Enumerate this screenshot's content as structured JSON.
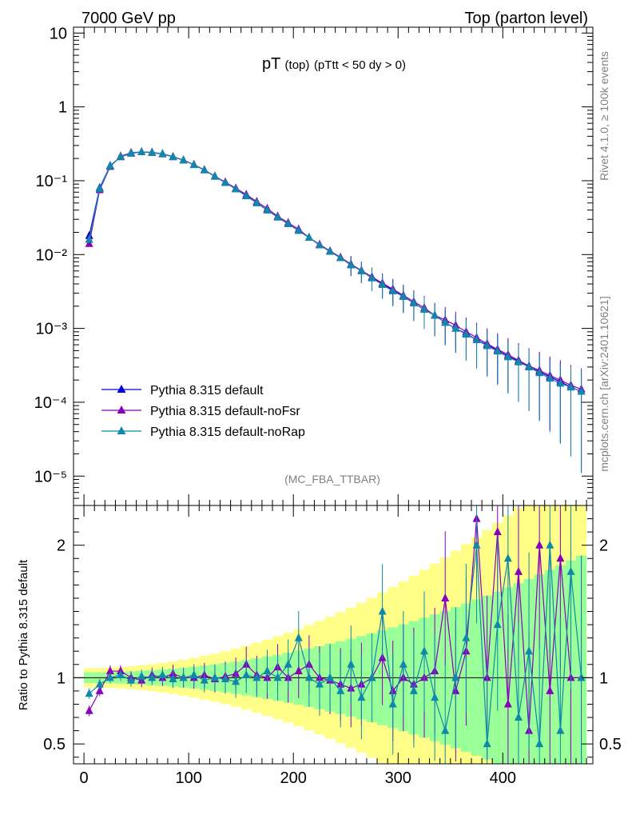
{
  "header": {
    "left": "7000 GeV pp",
    "right": "Top (parton level)"
  },
  "side_labels": {
    "rivet": "Rivet 4.1.0, ≥ 100k events",
    "mcplots": "mcplots.cern.ch [arXiv:2401.10621]"
  },
  "chart_data": [
    {
      "type": "line",
      "panel": "main",
      "title": "pT",
      "title_sub": "(top)",
      "title_cut": "(pTtt < 50 dy > 0)",
      "watermark": "(MC_FBA_TTBAR)",
      "xlim": [
        -10,
        486
      ],
      "ylim": [
        4e-06,
        12
      ],
      "yscale": "log",
      "yticks": [
        {
          "value": 10,
          "label": "10"
        },
        {
          "value": 1,
          "label": "1"
        },
        {
          "value": 0.1,
          "label": "10⁻¹"
        },
        {
          "value": 0.01,
          "label": "10⁻²"
        },
        {
          "value": 0.001,
          "label": "10⁻³"
        },
        {
          "value": 0.0001,
          "label": "10⁻⁴"
        },
        {
          "value": 1e-05,
          "label": "10⁻⁵"
        }
      ],
      "legend_position": "lower-left",
      "series": [
        {
          "name": "Pythia 8.315 default",
          "color": "#0000dd",
          "x": [
            5,
            15,
            25,
            35,
            45,
            55,
            65,
            75,
            85,
            95,
            105,
            115,
            125,
            135,
            145,
            155,
            165,
            175,
            185,
            195,
            205,
            215,
            225,
            235,
            245,
            255,
            265,
            275,
            285,
            295,
            305,
            315,
            325,
            335,
            345,
            355,
            365,
            375,
            385,
            395,
            405,
            415,
            425,
            435,
            445,
            455,
            465,
            475
          ],
          "values": [
            0.018,
            0.08,
            0.16,
            0.21,
            0.235,
            0.245,
            0.24,
            0.23,
            0.21,
            0.19,
            0.165,
            0.14,
            0.115,
            0.095,
            0.078,
            0.063,
            0.05,
            0.04,
            0.032,
            0.026,
            0.021,
            0.017,
            0.0135,
            0.011,
            0.009,
            0.0073,
            0.006,
            0.0049,
            0.004,
            0.0033,
            0.0027,
            0.0022,
            0.0018,
            0.0015,
            0.0012,
            0.001,
            0.00085,
            0.0007,
            0.0006,
            0.0005,
            0.00042,
            0.00036,
            0.0003,
            0.00026,
            0.00022,
            0.00019,
            0.00016,
            0.00014
          ]
        },
        {
          "name": "Pythia 8.315 default-noFsr",
          "color": "#8800bb",
          "x": [
            5,
            15,
            25,
            35,
            45,
            55,
            65,
            75,
            85,
            95,
            105,
            115,
            125,
            135,
            145,
            155,
            165,
            175,
            185,
            195,
            205,
            215,
            225,
            235,
            245,
            255,
            265,
            275,
            285,
            295,
            305,
            315,
            325,
            335,
            345,
            355,
            365,
            375,
            385,
            395,
            405,
            415,
            425,
            435,
            445,
            455,
            465,
            475
          ],
          "values": [
            0.014,
            0.075,
            0.155,
            0.215,
            0.24,
            0.245,
            0.242,
            0.232,
            0.212,
            0.19,
            0.165,
            0.14,
            0.115,
            0.096,
            0.079,
            0.065,
            0.052,
            0.042,
            0.033,
            0.027,
            0.022,
            0.017,
            0.0137,
            0.0112,
            0.0092,
            0.0074,
            0.0061,
            0.005,
            0.0041,
            0.0034,
            0.0028,
            0.0023,
            0.0019,
            0.0015,
            0.0013,
            0.0011,
            0.0009,
            0.00075,
            0.00062,
            0.00052,
            0.00044,
            0.00037,
            0.00031,
            0.00027,
            0.00023,
            0.0002,
            0.00017,
            0.00015
          ]
        },
        {
          "name": "Pythia 8.315 default-noRap",
          "color": "#1188aa",
          "x": [
            5,
            15,
            25,
            35,
            45,
            55,
            65,
            75,
            85,
            95,
            105,
            115,
            125,
            135,
            145,
            155,
            165,
            175,
            185,
            195,
            205,
            215,
            225,
            235,
            245,
            255,
            265,
            275,
            285,
            295,
            305,
            315,
            325,
            335,
            345,
            355,
            365,
            375,
            385,
            395,
            405,
            415,
            425,
            435,
            445,
            455,
            465,
            475
          ],
          "values": [
            0.016,
            0.078,
            0.158,
            0.212,
            0.237,
            0.246,
            0.241,
            0.231,
            0.211,
            0.189,
            0.164,
            0.139,
            0.114,
            0.094,
            0.077,
            0.062,
            0.05,
            0.04,
            0.032,
            0.026,
            0.021,
            0.017,
            0.0134,
            0.011,
            0.009,
            0.0072,
            0.006,
            0.0048,
            0.0039,
            0.0032,
            0.0027,
            0.0022,
            0.0018,
            0.0015,
            0.0012,
            0.001,
            0.00083,
            0.0007,
            0.00058,
            0.00049,
            0.00041,
            0.00035,
            0.0003,
            0.00025,
            0.00021,
            0.00018,
            0.00016,
            0.00014
          ]
        }
      ]
    },
    {
      "type": "line",
      "panel": "ratio",
      "ylabel": "Ratio to Pythia 8.315 default",
      "xlabel": "",
      "xlim": [
        -10,
        486
      ],
      "ylim": [
        0.35,
        2.3
      ],
      "xticks": [
        0,
        100,
        200,
        300,
        400
      ],
      "yticks": [
        {
          "value": 2,
          "label": "2"
        },
        {
          "value": 1,
          "label": "1"
        },
        {
          "value": 0.5,
          "label": "0.5"
        }
      ],
      "band_inner_color": "#99ff99",
      "band_outer_color": "#ffff88",
      "series": [
        {
          "name": "Pythia 8.315 default-noFsr",
          "color": "#8800bb",
          "x": [
            5,
            15,
            25,
            35,
            45,
            55,
            65,
            75,
            85,
            95,
            105,
            115,
            125,
            135,
            145,
            155,
            165,
            175,
            185,
            195,
            205,
            215,
            225,
            235,
            245,
            255,
            265,
            275,
            285,
            295,
            305,
            315,
            325,
            335,
            345,
            355,
            365,
            375,
            385,
            395,
            405,
            415,
            425,
            435,
            445,
            455,
            465,
            475
          ],
          "values": [
            0.75,
            0.9,
            1.05,
            1.05,
            1.0,
            0.98,
            1.02,
            1.0,
            1.03,
            1.0,
            1.0,
            1.02,
            0.99,
            1.01,
            1.03,
            1.1,
            1.02,
            1.0,
            1.08,
            1.0,
            1.05,
            1.1,
            1.0,
            0.98,
            0.95,
            0.92,
            0.95,
            1.0,
            1.15,
            0.9,
            1.0,
            0.95,
            1.0,
            1.05,
            1.6,
            0.9,
            1.2,
            2.2,
            1.0,
            2.1,
            0.8,
            1.8,
            0.6,
            2.0,
            0.9,
            1.9,
            1.0,
            1.0
          ]
        },
        {
          "name": "Pythia 8.315 default-noRap",
          "color": "#1188aa",
          "x": [
            5,
            15,
            25,
            35,
            45,
            55,
            65,
            75,
            85,
            95,
            105,
            115,
            125,
            135,
            145,
            155,
            165,
            175,
            185,
            195,
            205,
            215,
            225,
            235,
            245,
            255,
            265,
            275,
            285,
            295,
            305,
            315,
            325,
            335,
            345,
            355,
            365,
            375,
            385,
            395,
            405,
            415,
            425,
            435,
            445,
            455,
            465,
            475
          ],
          "values": [
            0.88,
            0.95,
            1.0,
            1.02,
            0.98,
            1.01,
            1.0,
            1.02,
            0.99,
            1.0,
            1.02,
            0.98,
            1.0,
            0.99,
            0.97,
            1.02,
            1.0,
            1.05,
            1.0,
            1.1,
            1.3,
            1.0,
            0.95,
            1.0,
            0.9,
            1.1,
            0.85,
            1.0,
            1.5,
            0.8,
            1.1,
            0.9,
            1.2,
            0.85,
            0.6,
            1.0,
            1.3,
            2.0,
            0.5,
            1.4,
            1.9,
            0.7,
            1.2,
            0.5,
            2.0,
            0.6,
            1.8,
            1.0
          ]
        }
      ]
    }
  ]
}
